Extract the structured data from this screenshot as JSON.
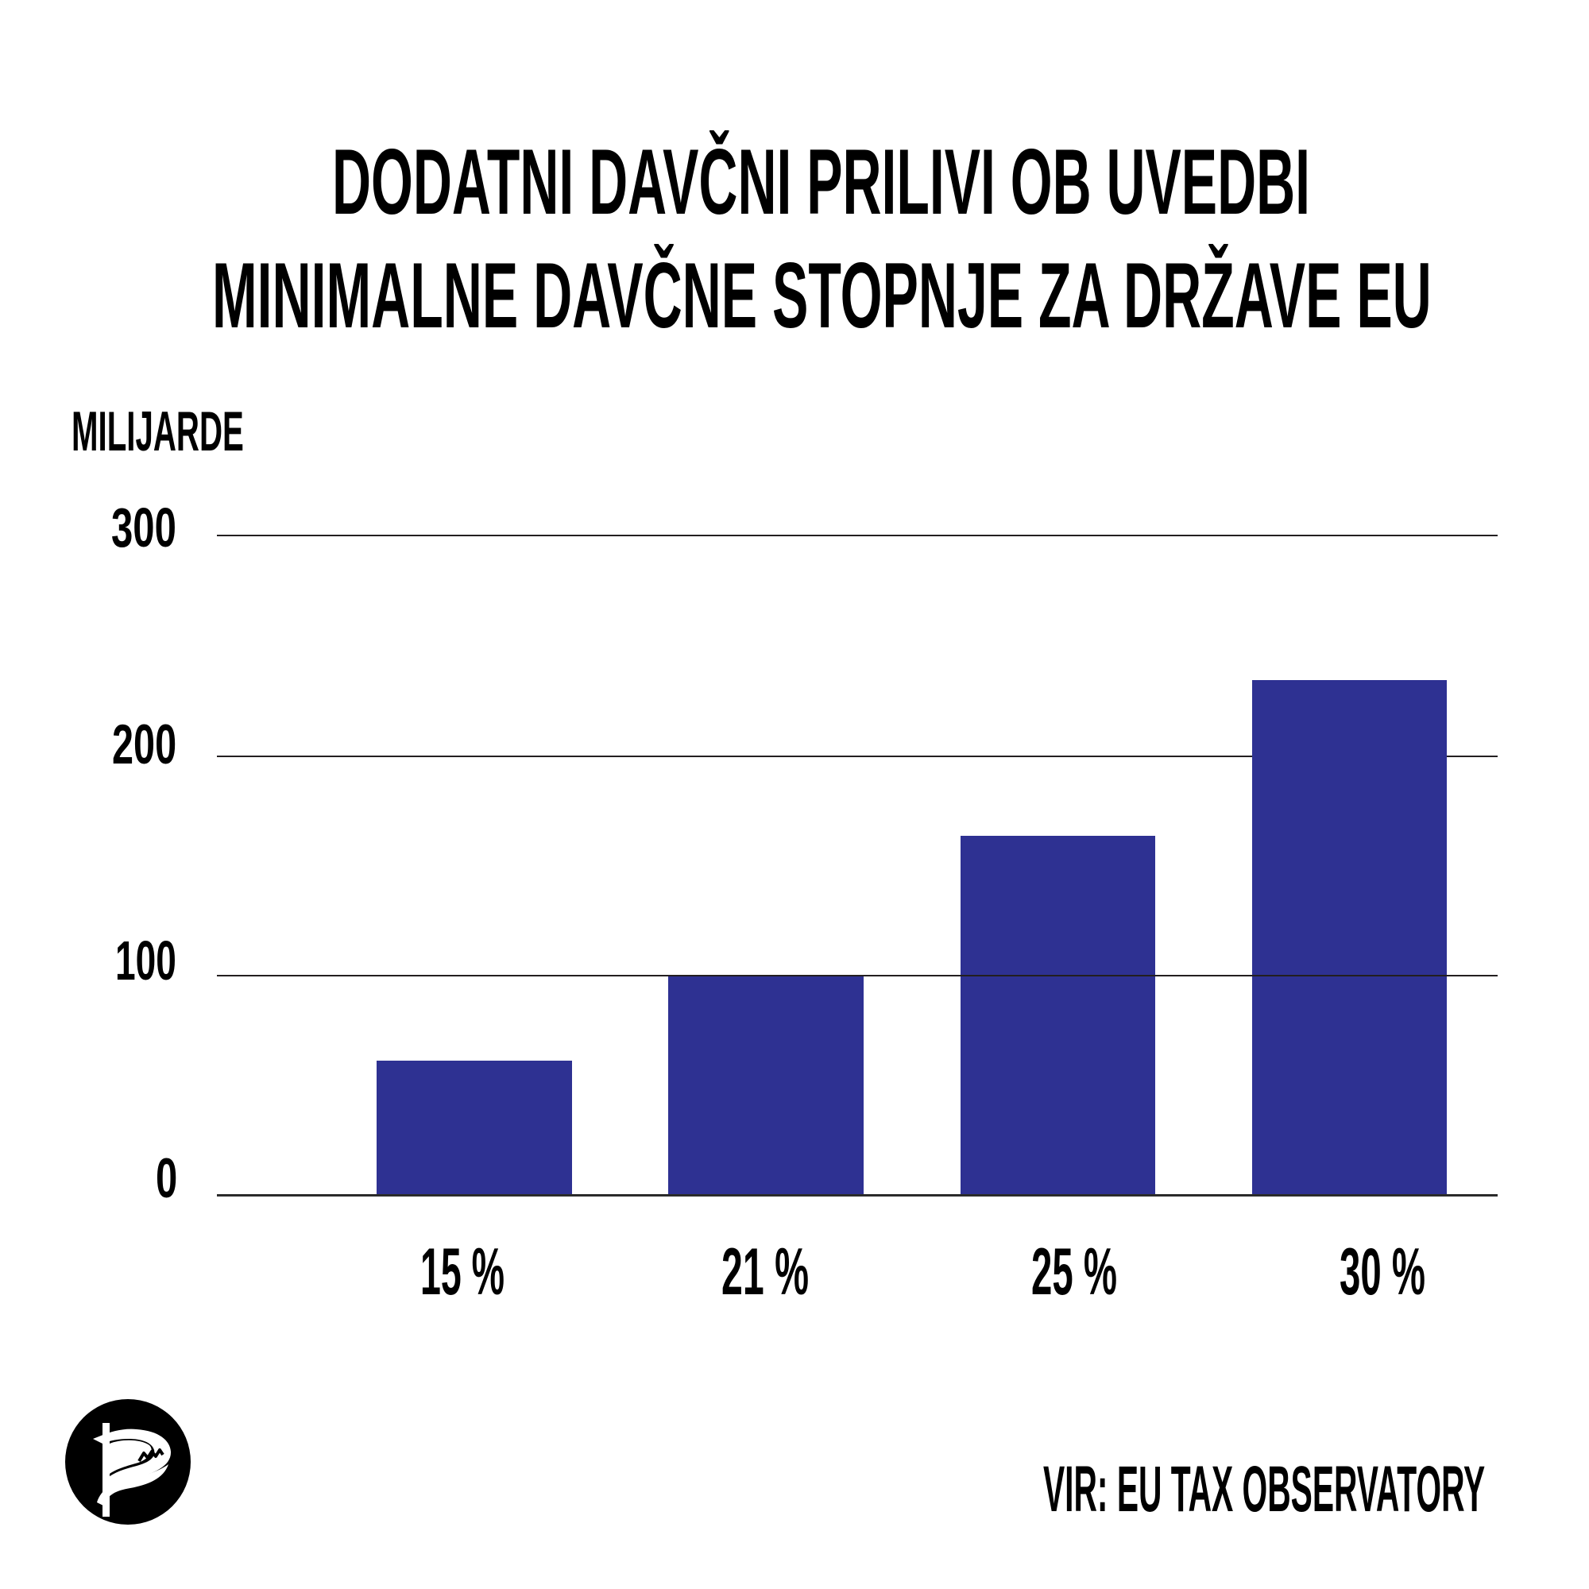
{
  "title": {
    "line1": "DODATNI DAVČNI PRILIVI OB UVEDBI",
    "line2": "MINIMALNE DAVČNE STOPNJE ZA DRŽAVE EU"
  },
  "y_axis": {
    "unit_label": "MILIJARDE",
    "ticks": [
      "0",
      "100",
      "200",
      "300"
    ]
  },
  "x_axis": {
    "ticks": [
      "15 %",
      "21 %",
      "25 %",
      "30 %"
    ]
  },
  "source": "VIR: EU TAX OBSERVATORY",
  "logo": {
    "icon": "pirate-party-logo-icon"
  },
  "colors": {
    "bar": "#2e3192",
    "grid": "#231f20",
    "text": "#000000",
    "background": "#ffffff"
  },
  "chart_data": {
    "type": "bar",
    "title": "DODATNI DAVČNI PRILIVI OB UVEDBI MINIMALNE DAVČNE STOPNJE ZA DRŽAVE EU",
    "categories": [
      "15 %",
      "21 %",
      "25 %",
      "30 %"
    ],
    "values": [
      61,
      100,
      163,
      234
    ],
    "xlabel": "",
    "ylabel": "MILIJARDE",
    "ylim": [
      0,
      300
    ],
    "yticks": [
      0,
      100,
      200,
      300
    ],
    "grid": true,
    "legend": null,
    "annotations": [
      "VIR: EU TAX OBSERVATORY"
    ]
  }
}
